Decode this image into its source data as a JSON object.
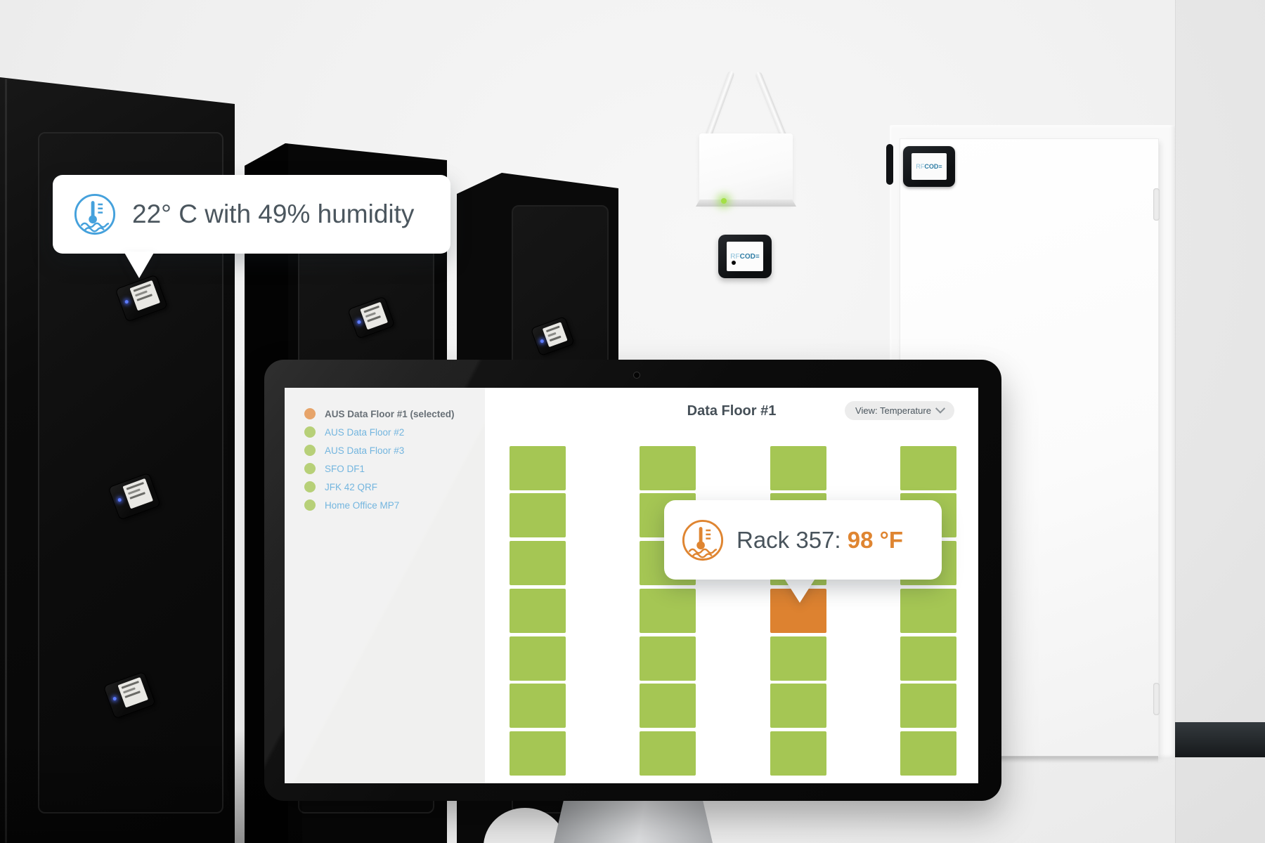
{
  "humidity_tooltip": {
    "text": "22° C with 49% humidity"
  },
  "rack_tooltip": {
    "label": "Rack 357: ",
    "value": "98 °F"
  },
  "brand": {
    "rf": "RF",
    "cod": "COD",
    "e": "≡"
  },
  "dashboard": {
    "sidebar": {
      "items": [
        {
          "label": "AUS Data Floor #1 (selected)",
          "selected": true
        },
        {
          "label": "AUS Data Floor #2",
          "selected": false
        },
        {
          "label": "AUS Data Floor #3",
          "selected": false
        },
        {
          "label": "SFO DF1",
          "selected": false
        },
        {
          "label": "JFK 42 QRF",
          "selected": false
        },
        {
          "label": "Home Office MP7",
          "selected": false
        }
      ]
    },
    "header": {
      "title": "Data Floor #1",
      "view_label": "View: Temperature"
    },
    "rack_grid": {
      "columns": 4,
      "rows": 7,
      "hot_cell": {
        "column": 3,
        "row": 4,
        "rack_id": "357",
        "temperature": "98 °F"
      },
      "cells": [
        [
          "ok",
          "ok",
          "ok",
          "ok"
        ],
        [
          "ok",
          "ok",
          "ok",
          "ok"
        ],
        [
          "ok",
          "ok",
          "ok",
          "ok"
        ],
        [
          "ok",
          "ok",
          "hot",
          "ok"
        ],
        [
          "ok",
          "ok",
          "ok",
          "ok"
        ],
        [
          "ok",
          "ok",
          "ok",
          "ok"
        ],
        [
          "ok",
          "ok",
          "ok",
          "ok"
        ]
      ]
    }
  },
  "colors": {
    "ok_green": "#a5c654",
    "hot_orange": "#dd8230",
    "link_blue": "#58a7d9",
    "selected_dot_orange": "#e2934e",
    "ok_dot_green": "#a9c75e",
    "text_dark": "#4a545c",
    "icon_blue": "#45a1dc",
    "icon_orange": "#df8531"
  }
}
